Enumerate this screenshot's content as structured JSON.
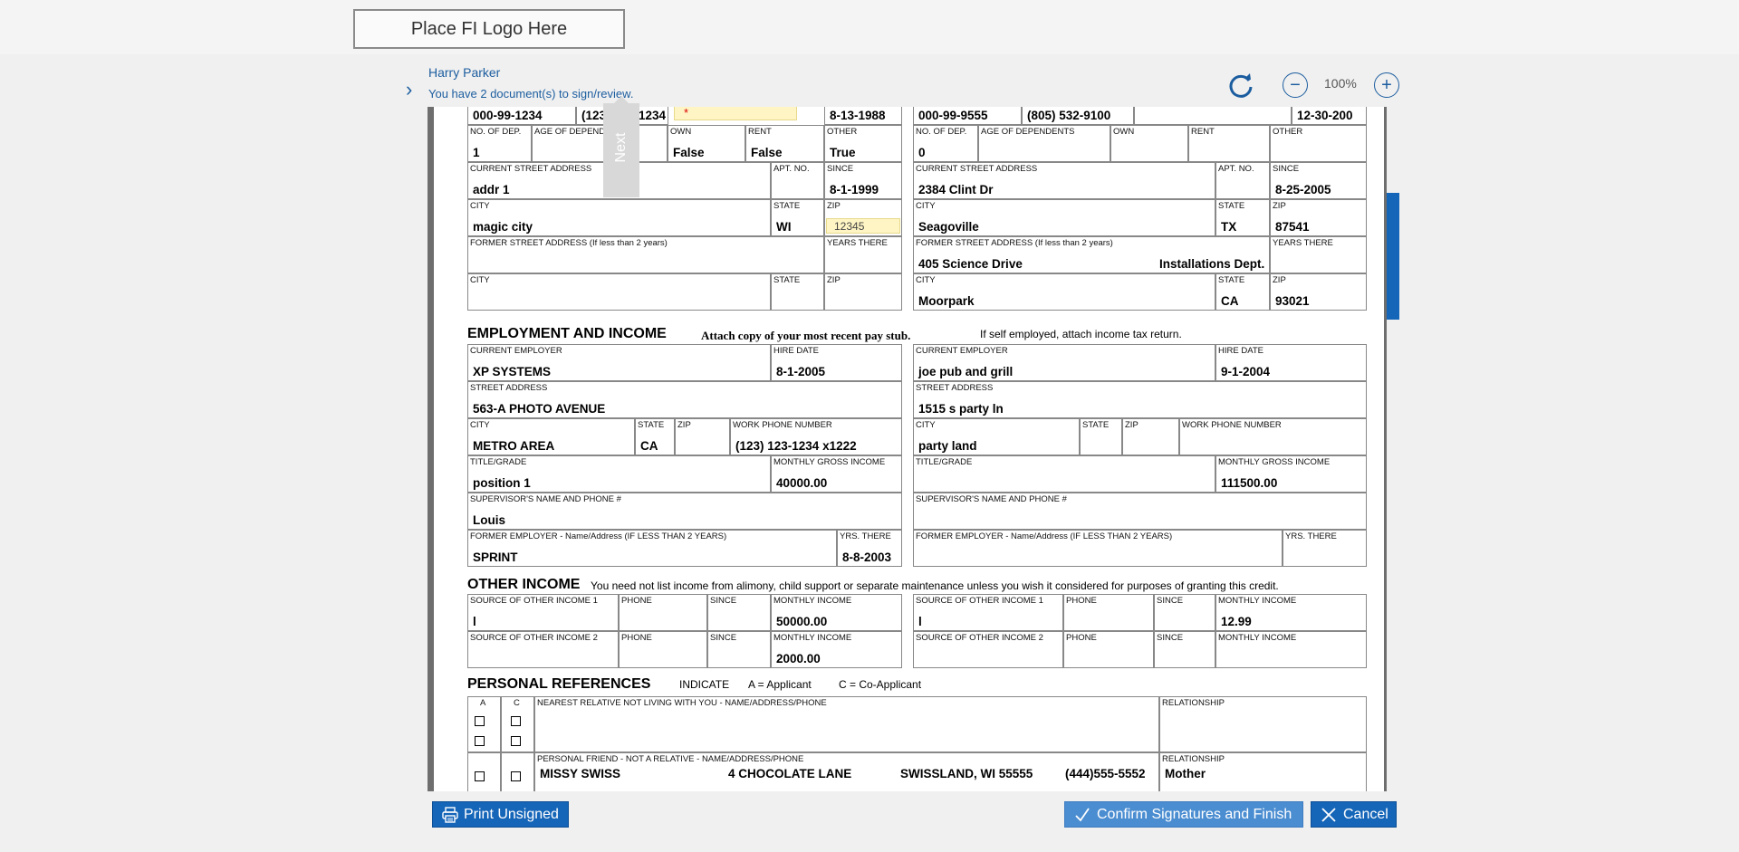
{
  "logo": {
    "text": "Place FI Logo Here"
  },
  "header": {
    "signer_name": "Harry Parker",
    "message": "You have 2 document(s) to sign/review.",
    "zoom_level": "100%",
    "next_label": "Next"
  },
  "form": {
    "top_row": {
      "app_ssn": "000-99-1234",
      "app_phone": "(123) 123-1234",
      "app_phone_left": "(123",
      "app_phone_right": "1234",
      "app_required_marker": "*",
      "app_dob": "8-13-1988",
      "co_ssn": "000-99-9555",
      "co_phone": "(805) 532-9100",
      "co_dob": "12-30-200"
    },
    "labels": {
      "no_of_dep": "NO. OF DEP.",
      "age_of_dependents": "AGE OF DEPENDENTS",
      "age_of_dependents_short": "AGE OF DEPENDE",
      "own": "OWN",
      "rent": "RENT",
      "other": "OTHER",
      "current_street_address": "CURRENT STREET ADDRESS",
      "apt_no": "APT. NO.",
      "since": "SINCE",
      "city": "CITY",
      "state": "STATE",
      "zip": "ZIP",
      "former_street_address": "FORMER STREET ADDRESS (If less than 2 years)",
      "years_there": "YEARS THERE",
      "current_employer": "CURRENT EMPLOYER",
      "hire_date": "HIRE DATE",
      "street_address": "STREET ADDRESS",
      "work_phone_number": "WORK PHONE NUMBER",
      "title_grade": "TITLE/GRADE",
      "monthly_gross_income": "MONTHLY GROSS INCOME",
      "supervisor": "SUPERVISOR'S NAME AND PHONE #",
      "former_employer": "FORMER EMPLOYER - Name/Address (IF LESS THAN 2 YEARS)",
      "yrs_there": "YRS. THERE",
      "source_1": "SOURCE OF OTHER INCOME 1",
      "source_2": "SOURCE OF OTHER INCOME 2",
      "phone": "PHONE",
      "monthly_income": "MONTHLY INCOME",
      "col_a": "A",
      "col_c": "C",
      "nearest_relative": "NEAREST RELATIVE NOT LIVING WITH YOU - NAME/ADDRESS/PHONE",
      "relationship": "RELATIONSHIP",
      "personal_friend": "PERSONAL FRIEND - NOT A RELATIVE - NAME/ADDRESS/PHONE"
    },
    "applicant": {
      "no_of_dep": "1",
      "own": "False",
      "rent": "False",
      "other": "True",
      "street": "addr 1",
      "since": "8-1-1999",
      "city": "magic city",
      "state": "WI",
      "zip": "12345",
      "employer": "XP SYSTEMS",
      "hire_date": "8-1-2005",
      "emp_street": "563-A PHOTO AVENUE",
      "emp_city": "METRO AREA",
      "emp_state": "CA",
      "work_phone": "(123) 123-1234 x1222",
      "title": "position 1",
      "monthly_gross": "40000.00",
      "supervisor": "Louis",
      "former_employer": "SPRINT",
      "former_yrs": "8-8-2003",
      "other_source_1": "l",
      "other_income_1": "50000.00",
      "other_income_2": "2000.00"
    },
    "co_applicant": {
      "no_of_dep": "0",
      "street": "2384 Clint Dr",
      "since": "8-25-2005",
      "city": "Seagoville",
      "state": "TX",
      "zip": "87541",
      "former_street": "405 Science Drive",
      "former_street_extra": "Installations Dept.",
      "former_city": "Moorpark",
      "former_state": "CA",
      "former_zip": "93021",
      "employer": "joe pub and grill",
      "hire_date": "9-1-2004",
      "emp_street": "1515 s party ln",
      "emp_city": "party land",
      "monthly_gross": "111500.00",
      "other_source_1": "l",
      "other_income_1": "12.99"
    },
    "sections": {
      "employment_title": "EMPLOYMENT AND INCOME",
      "employment_note_bold": "Attach copy of your most recent pay stub.",
      "employment_note": "If self employed, attach income tax return.",
      "other_income_title": "OTHER INCOME",
      "other_income_note": "You need not list income from alimony, child support or separate maintenance unless you wish it considered for purposes of granting this credit.",
      "references_title": "PERSONAL REFERENCES",
      "indicate": "INDICATE",
      "applicant_key": "A = Applicant",
      "co_applicant_key": "C = Co-Applicant"
    },
    "references": {
      "friend_name": "MISSY SWISS",
      "friend_address": "4 CHOCOLATE LANE",
      "friend_city": "SWISSLAND, WI 55555",
      "friend_phone": "(444)555-5552",
      "friend_relationship": "Mother"
    }
  },
  "footer": {
    "print_label": "Print Unsigned",
    "confirm_label": "Confirm Signatures and Finish",
    "cancel_label": "Cancel"
  },
  "colors": {
    "accent": "#1565b8",
    "link": "#1c5d9f",
    "highlight": "#fff5c4"
  }
}
